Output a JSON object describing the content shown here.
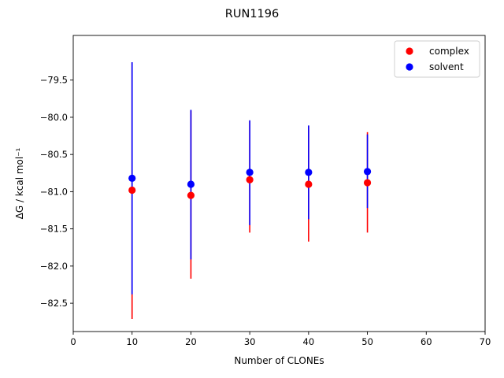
{
  "chart_data": {
    "type": "scatter",
    "title": "RUN1196",
    "xlabel": "Number of CLONEs",
    "ylabel": "ΔG / kcal mol⁻¹",
    "xlim": [
      0,
      70
    ],
    "ylim": [
      -82.88,
      -78.9
    ],
    "xticks": [
      0,
      10,
      20,
      30,
      40,
      50,
      60,
      70
    ],
    "xtick_labels": [
      "0",
      "10",
      "20",
      "30",
      "40",
      "50",
      "60",
      "70"
    ],
    "yticks": [
      -79.5,
      -80.0,
      -80.5,
      -81.0,
      -81.5,
      -82.0,
      -82.5
    ],
    "ytick_labels": [
      "−79.5",
      "−80.0",
      "−80.5",
      "−81.0",
      "−81.5",
      "−82.0",
      "−82.5"
    ],
    "grid": false,
    "legend_position": "top-right",
    "series": [
      {
        "name": "complex",
        "color": "#ff0000",
        "x": [
          10,
          20,
          30,
          40,
          50
        ],
        "y": [
          -80.98,
          -81.05,
          -80.84,
          -80.9,
          -80.88
        ],
        "err_low": [
          -82.71,
          -82.17,
          -81.55,
          -81.67,
          -81.55
        ],
        "err_high": [
          -79.26,
          -79.91,
          -80.05,
          -80.12,
          -80.2
        ]
      },
      {
        "name": "solvent",
        "color": "#0000ff",
        "x": [
          10,
          20,
          30,
          40,
          50
        ],
        "y": [
          -80.82,
          -80.9,
          -80.74,
          -80.74,
          -80.73
        ],
        "err_low": [
          -82.38,
          -81.91,
          -81.45,
          -81.37,
          -81.22
        ],
        "err_high": [
          -79.26,
          -79.9,
          -80.04,
          -80.11,
          -80.23
        ]
      }
    ]
  }
}
